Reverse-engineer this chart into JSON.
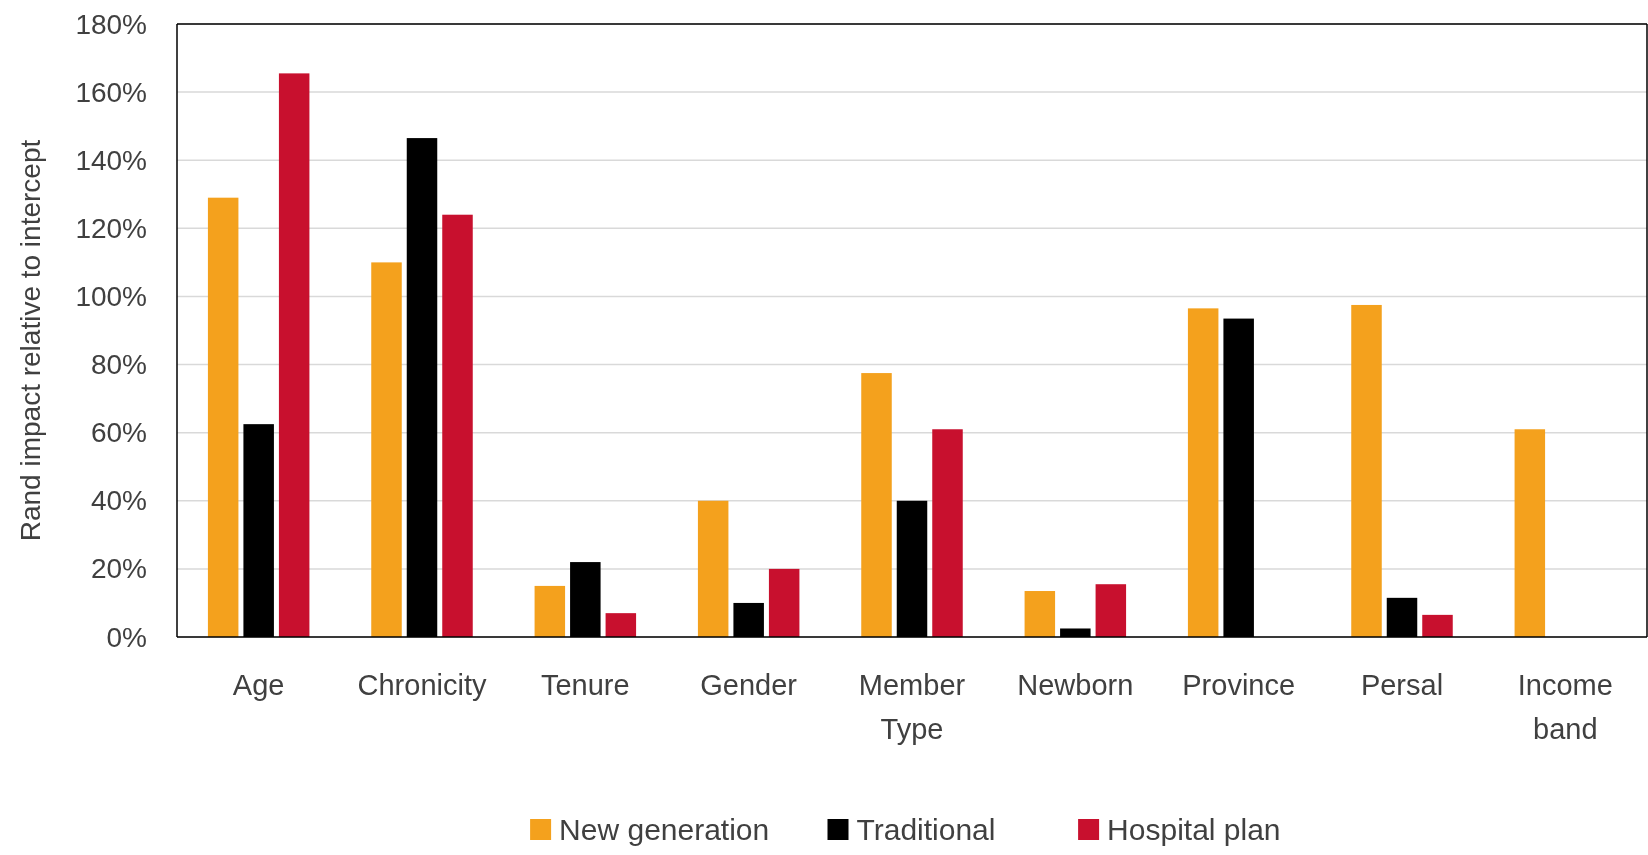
{
  "chart_data": {
    "type": "bar",
    "ylabel": "Rand impact relative to intercept",
    "categories": [
      "Age",
      "Chronicity",
      "Tenure",
      "Gender",
      "Member Type",
      "Newborn",
      "Province",
      "Persal",
      "Income band"
    ],
    "series": [
      {
        "name": "New generation",
        "color": "#f4a11d",
        "values": [
          129,
          110,
          15,
          40,
          77.5,
          13.5,
          96.5,
          97.5,
          61
        ]
      },
      {
        "name": "Traditional",
        "color": "#000000",
        "values": [
          62.5,
          146.5,
          22,
          10,
          40,
          2.5,
          93.5,
          11.5,
          null
        ]
      },
      {
        "name": "Hospital plan",
        "color": "#c8102e",
        "values": [
          165.5,
          124,
          7,
          20,
          61,
          15.5,
          null,
          6.5,
          null
        ]
      }
    ],
    "ylim": [
      0,
      180
    ],
    "yticks": [
      {
        "value": 0,
        "label": "0%"
      },
      {
        "value": 20,
        "label": "20%"
      },
      {
        "value": 40,
        "label": "40%"
      },
      {
        "value": 60,
        "label": "60%"
      },
      {
        "value": 80,
        "label": "80%"
      },
      {
        "value": 100,
        "label": "100%"
      },
      {
        "value": 120,
        "label": "120%"
      },
      {
        "value": 140,
        "label": "140%"
      },
      {
        "value": 160,
        "label": "160%"
      },
      {
        "value": 180,
        "label": "180%"
      }
    ],
    "grid": "y",
    "legend": "bottom"
  }
}
